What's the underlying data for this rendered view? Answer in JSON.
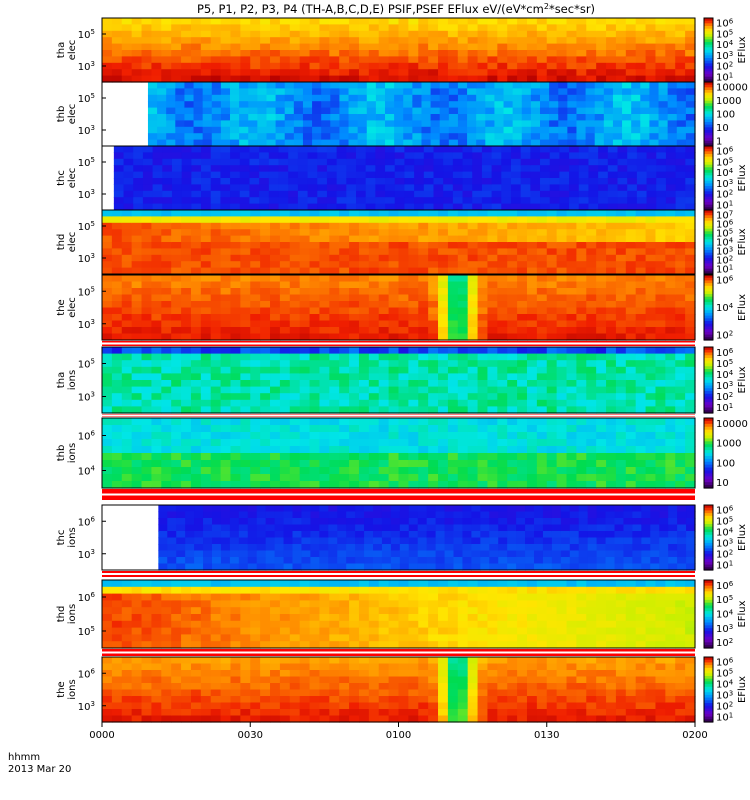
{
  "chart_data": {
    "type": "heatmap",
    "title": "P5, P1, P2, P3, P4 (TH-A,B,C,D,E) PSIF,PSEF EFlux eV/(eV*cm²*sec*sr)",
    "x": {
      "ticks": [
        "0000",
        "0030",
        "0100",
        "0130",
        "0200"
      ],
      "tick_hours": [
        0,
        0.5,
        1.0,
        1.5,
        2.0
      ],
      "range_hours": [
        0,
        2.0
      ],
      "label_line1": "hhmm",
      "label_line2": "2013 Mar 20"
    },
    "panels": [
      {
        "id": "tha-elec",
        "ylabel": [
          "tha",
          "elec"
        ],
        "yticks": [
          "10^5",
          "10^3"
        ],
        "colorbar_ticks": [
          "10^6",
          "10^5",
          "10^4",
          "10^3",
          "10^2",
          "10^1"
        ],
        "colorbar_label": "EFlux",
        "style": "red_fill",
        "data_start_hour": 0
      },
      {
        "id": "thb-elec",
        "ylabel": [
          "thb",
          "elec"
        ],
        "yticks": [
          "10^5",
          "10^3"
        ],
        "colorbar_ticks": [
          "10000",
          "1000",
          "100",
          "10",
          "1"
        ],
        "colorbar_label": "",
        "style": "cyan_patch",
        "data_start_hour": 0.155
      },
      {
        "id": "thc-elec",
        "ylabel": [
          "thc",
          "elec"
        ],
        "yticks": [
          "10^5",
          "10^3"
        ],
        "colorbar_ticks": [
          "10^6",
          "10^5",
          "10^4",
          "10^3",
          "10^2",
          "10^1"
        ],
        "colorbar_label": "EFlux",
        "style": "blue_patch",
        "data_start_hour": 0.04
      },
      {
        "id": "thd-elec",
        "ylabel": [
          "thd",
          "elec"
        ],
        "yticks": [
          "10^5",
          "10^3"
        ],
        "colorbar_ticks": [
          "10^7",
          "10^6",
          "10^5",
          "10^4",
          "10^3",
          "10^2",
          "10^1"
        ],
        "colorbar_label": "EFlux",
        "style": "red_ridge",
        "data_start_hour": 0
      },
      {
        "id": "the-elec",
        "ylabel": [
          "the",
          "elec"
        ],
        "yticks": [
          "10^5",
          "10^3"
        ],
        "colorbar_ticks": [
          "10^6",
          "10^4",
          "10^2"
        ],
        "colorbar_label": "EFlux",
        "style": "orange_dip",
        "data_start_hour": 0
      },
      {
        "id": "tha-ions",
        "ylabel": [
          "tha",
          "ions"
        ],
        "yticks": [
          "10^5",
          "10^3"
        ],
        "colorbar_ticks": [
          "10^6",
          "10^5",
          "10^4",
          "10^3",
          "10^2",
          "10^1"
        ],
        "colorbar_label": "EFlux",
        "style": "green_noise",
        "data_start_hour": 0
      },
      {
        "id": "thb-ions",
        "ylabel": [
          "thb",
          "ions"
        ],
        "yticks": [
          "10^6",
          "10^4"
        ],
        "colorbar_ticks": [
          "10000",
          "1000",
          "100",
          "10"
        ],
        "colorbar_label": "",
        "style": "green_patch",
        "data_start_hour": 0
      },
      {
        "id": "thc-ions",
        "ylabel": [
          "thc",
          "ions"
        ],
        "yticks": [
          "10^6",
          "10^3"
        ],
        "colorbar_ticks": [
          "10^6",
          "10^5",
          "10^4",
          "10^3",
          "10^2",
          "10^1"
        ],
        "colorbar_label": "EFlux",
        "style": "blue_patch2",
        "data_start_hour": 0.19
      },
      {
        "id": "thd-ions",
        "ylabel": [
          "thd",
          "ions"
        ],
        "yticks": [
          "10^6",
          "10^5"
        ],
        "colorbar_ticks": [
          "10^6",
          "10^5",
          "10^4",
          "10^3",
          "10^2"
        ],
        "colorbar_label": "EFlux",
        "style": "red_ridge2",
        "data_start_hour": 0
      },
      {
        "id": "the-ions",
        "ylabel": [
          "the",
          "ions"
        ],
        "yticks": [
          "10^6",
          "10^3"
        ],
        "colorbar_ticks": [
          "10^6",
          "10^5",
          "10^4",
          "10^3",
          "10^2",
          "10^1"
        ],
        "colorbar_label": "EFlux",
        "style": "orange_dip2",
        "data_start_hour": 0
      }
    ],
    "grid": false,
    "colormap": "rainbow (purple-blue-cyan-green-yellow-red)"
  }
}
